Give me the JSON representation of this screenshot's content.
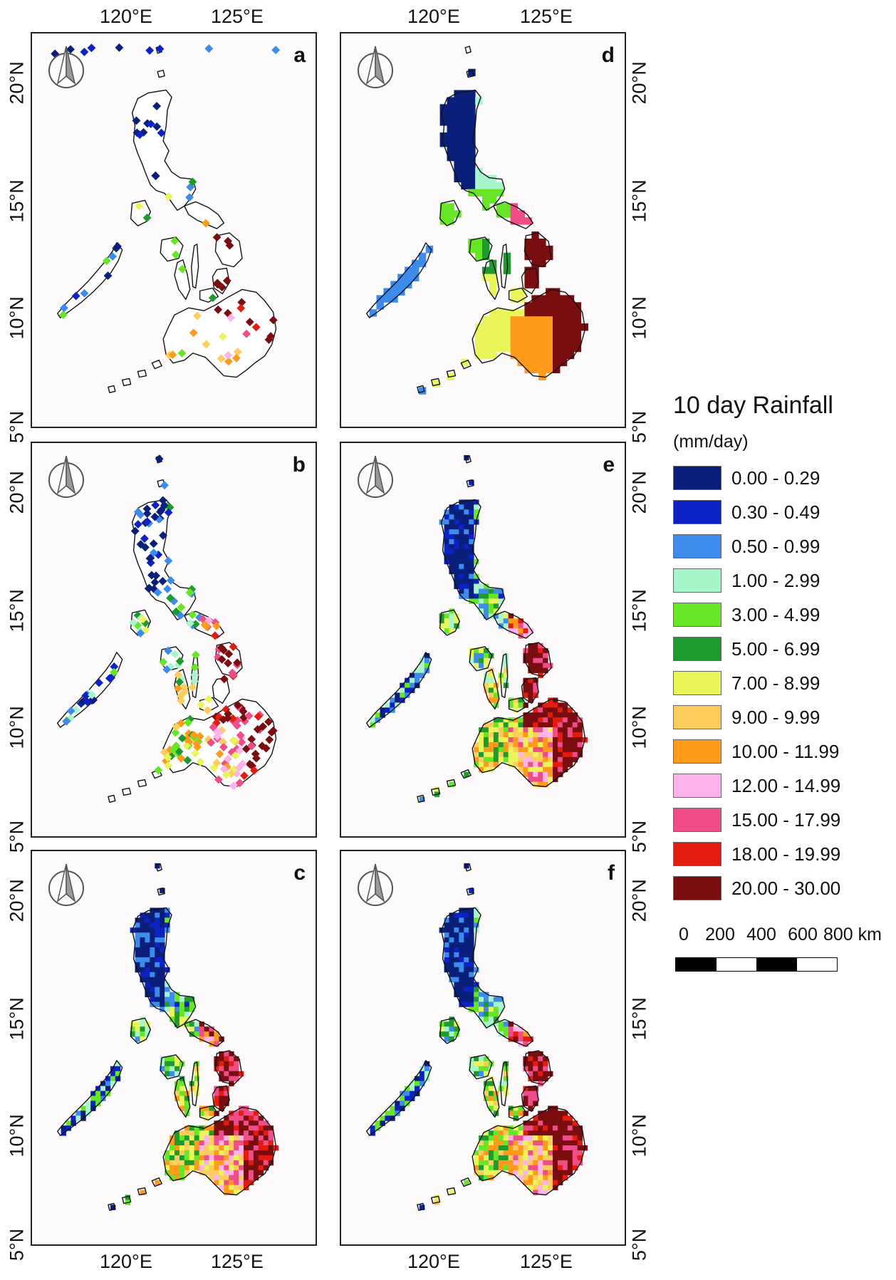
{
  "panels": [
    {
      "letter": "a",
      "kind": "stations"
    },
    {
      "letter": "d",
      "kind": "smooth"
    },
    {
      "letter": "b",
      "kind": "stations_dense"
    },
    {
      "letter": "e",
      "kind": "grid"
    },
    {
      "letter": "c",
      "kind": "grid"
    },
    {
      "letter": "f",
      "kind": "grid"
    }
  ],
  "axes": {
    "lon_labels": [
      "120°E",
      "125°E"
    ],
    "lat_labels": [
      "20°N",
      "15°N",
      "10°N",
      "5°N"
    ]
  },
  "legend": {
    "title": "10 day Rainfall",
    "unit": "(mm/day)",
    "classes": [
      {
        "label": "0.00 - 0.29",
        "color": "#0a1f7a"
      },
      {
        "label": "0.30 - 0.49",
        "color": "#0c22c4"
      },
      {
        "label": "0.50 - 0.99",
        "color": "#3d8bea"
      },
      {
        "label": "1.00 - 2.99",
        "color": "#a8f5cc"
      },
      {
        "label": "3.00 - 4.99",
        "color": "#66e626"
      },
      {
        "label": "5.00 - 6.99",
        "color": "#1f9a2f"
      },
      {
        "label": "7.00 - 8.99",
        "color": "#eaf55a"
      },
      {
        "label": "9.00 - 9.99",
        "color": "#ffcd5e"
      },
      {
        "label": "10.00 - 11.99",
        "color": "#ff9a1a"
      },
      {
        "label": "12.00 - 14.99",
        "color": "#ffb3ea"
      },
      {
        "label": "15.00 - 17.99",
        "color": "#ee4d88"
      },
      {
        "label": "18.00 - 19.99",
        "color": "#e21d10"
      },
      {
        "label": "20.00 - 30.00",
        "color": "#7a0d10"
      }
    ]
  },
  "scale": {
    "labels": [
      "0",
      "200",
      "400",
      "600",
      "800 km"
    ]
  },
  "icons": [
    "north-arrow-icon"
  ]
}
